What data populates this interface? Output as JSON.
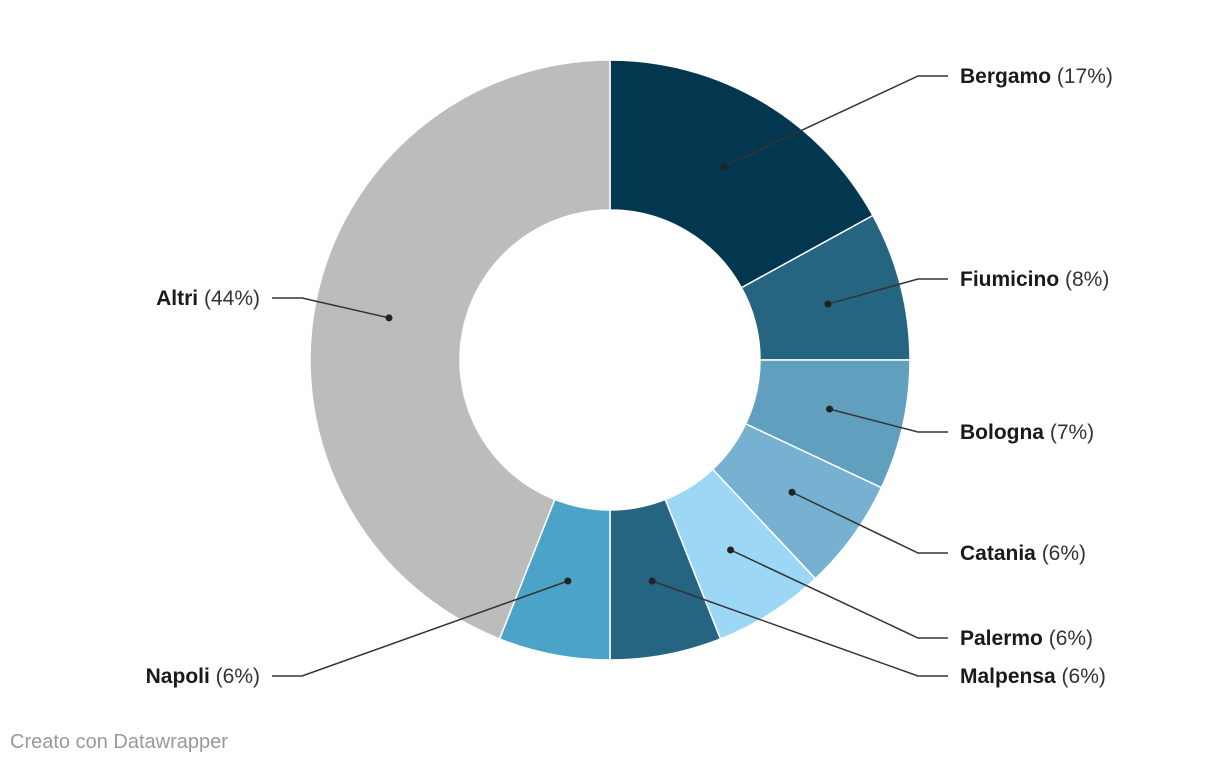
{
  "chart_data": {
    "type": "pie",
    "variant": "donut",
    "slices": [
      {
        "label": "Bergamo",
        "value": 17,
        "display": "(17%)",
        "color": "#03364f"
      },
      {
        "label": "Fiumicino",
        "value": 8,
        "display": "(8%)",
        "color": "#256582"
      },
      {
        "label": "Bologna",
        "value": 7,
        "display": "(7%)",
        "color": "#609fbd"
      },
      {
        "label": "Catania",
        "value": 6,
        "display": "(6%)",
        "color": "#76b1d2"
      },
      {
        "label": "Palermo",
        "value": 6,
        "display": "(6%)",
        "color": "#9cd7f5"
      },
      {
        "label": "Malpensa",
        "value": 6,
        "display": "(6%)",
        "color": "#256582"
      },
      {
        "label": "Napoli",
        "value": 6,
        "display": "(6%)",
        "color": "#4ba3c7"
      },
      {
        "label": "Altri",
        "value": 44,
        "display": "(44%)",
        "color": "#bcbcbc"
      }
    ]
  },
  "footer": {
    "credit": "Creato con Datawrapper"
  }
}
